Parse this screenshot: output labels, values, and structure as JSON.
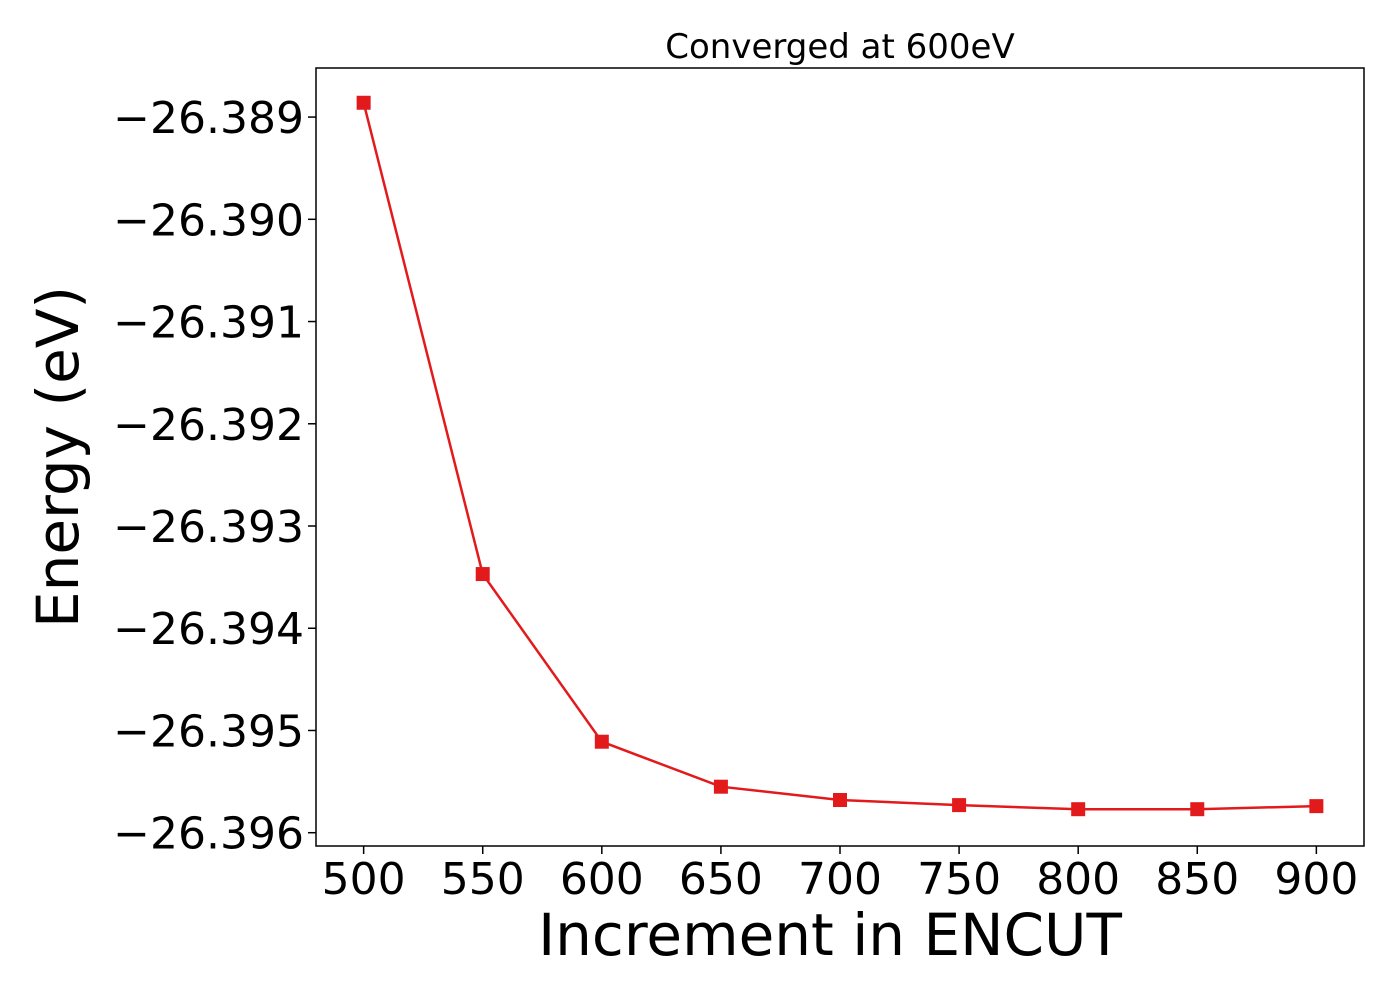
{
  "chart_data": {
    "type": "line",
    "title": "Converged at 600eV",
    "xlabel": "Increment in ENCUT",
    "ylabel": "Energy (eV)",
    "x": [
      500,
      550,
      600,
      650,
      700,
      750,
      800,
      850,
      900
    ],
    "series": [
      {
        "values": [
          -26.38886,
          -26.39347,
          -26.39511,
          -26.39555,
          -26.39568,
          -26.39573,
          -26.39577,
          -26.39577,
          -26.39574
        ]
      }
    ],
    "xlim": [
      480,
      920
    ],
    "ylim": [
      -26.39613,
      -26.38852
    ],
    "xticks": [
      500,
      550,
      600,
      650,
      700,
      750,
      800,
      850,
      900
    ],
    "xtick_labels": [
      "500",
      "550",
      "600",
      "650",
      "700",
      "750",
      "800",
      "850",
      "900"
    ],
    "yticks": [
      -26.389,
      -26.39,
      -26.391,
      -26.392,
      -26.393,
      -26.394,
      -26.395,
      -26.396
    ],
    "ytick_labels": [
      "−26.389",
      "−26.390",
      "−26.391",
      "−26.392",
      "−26.393",
      "−26.394",
      "−26.395",
      "−26.396"
    ],
    "grid": false,
    "legend": "none",
    "colors": {
      "line": "#e31a1c",
      "marker": "#e31a1c",
      "axes": "#000000"
    },
    "marker": "square"
  }
}
